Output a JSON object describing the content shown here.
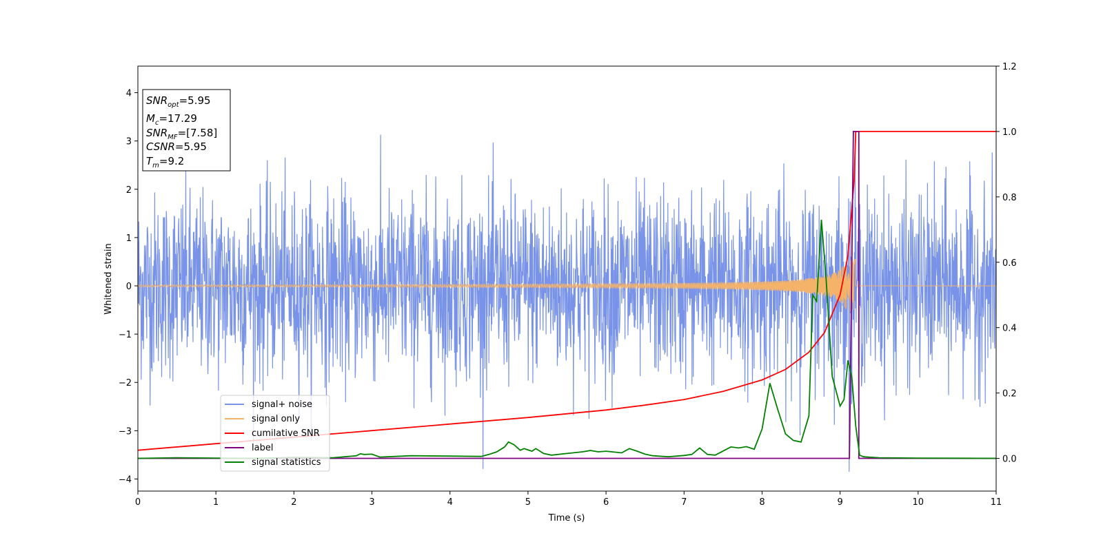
{
  "chart_data": {
    "type": "line",
    "xlabel": "Time (s)",
    "ylabel": "Whitened strain",
    "xlim": [
      0,
      11
    ],
    "ylim_left": [
      -4.25,
      4.55
    ],
    "ylim_right": [
      -0.1,
      1.2
    ],
    "x_ticks": [
      "0",
      "1",
      "2",
      "3",
      "4",
      "5",
      "6",
      "7",
      "8",
      "9",
      "10",
      "11"
    ],
    "y_left_ticks": [
      "−4",
      "−3",
      "−2",
      "−1",
      "0",
      "1",
      "2",
      "3",
      "4"
    ],
    "y_right_ticks": [
      "0.0",
      "0.2",
      "0.4",
      "0.6",
      "0.8",
      "1.0",
      "1.2"
    ],
    "grid": false,
    "legend_position": "lower-left",
    "annotation": {
      "snr_opt": {
        "base": "SNR",
        "sub": "opt",
        "value": "=5.95"
      },
      "mc": {
        "base": "M",
        "sub": "c",
        "value": "=17.29"
      },
      "snr_mf": {
        "base": "SNR",
        "sub": "MF",
        "value": "=[7.58]"
      },
      "csnr": {
        "base": "CSNR",
        "sub": "",
        "value": "=5.95"
      },
      "tm": {
        "base": "T",
        "sub": "m",
        "value": "=9.2"
      }
    },
    "series": [
      {
        "name": "signal+ noise",
        "color": "#7893e8",
        "axis": "left",
        "noise_sigma": 0.95,
        "range_approx": [
          -3.85,
          4.15
        ]
      },
      {
        "name": "signal only",
        "color": "#f5b36a",
        "axis": "left",
        "chirp_start_amp": 0.02,
        "chirp_end_amp": 0.55,
        "merger_time": 9.2
      },
      {
        "name": "cumilative SNR",
        "color": "#ff0000",
        "axis": "right",
        "x": [
          0,
          1,
          2,
          3,
          4,
          5,
          6,
          6.5,
          7,
          7.5,
          8,
          8.3,
          8.6,
          8.8,
          9.0,
          9.1,
          9.18,
          9.2,
          11
        ],
        "y": [
          0.025,
          0.045,
          0.065,
          0.085,
          0.105,
          0.125,
          0.148,
          0.163,
          0.18,
          0.205,
          0.24,
          0.272,
          0.325,
          0.385,
          0.5,
          0.62,
          0.85,
          1.0,
          1.0
        ]
      },
      {
        "name": "label",
        "color": "#800080",
        "axis": "right",
        "x": [
          0,
          9.12,
          9.17,
          9.24,
          9.24,
          11
        ],
        "y": [
          0,
          0,
          1,
          1,
          0,
          0
        ]
      },
      {
        "name": "signal statistics",
        "color": "#008000",
        "axis": "right",
        "x": [
          0,
          0.5,
          1,
          1.5,
          2,
          2.5,
          2.7,
          2.8,
          2.85,
          2.9,
          3.0,
          3.1,
          3.2,
          3.5,
          4.0,
          4.4,
          4.5,
          4.6,
          4.7,
          4.75,
          4.82,
          4.9,
          4.95,
          5.05,
          5.1,
          5.2,
          5.3,
          5.5,
          5.7,
          5.8,
          5.9,
          6.0,
          6.2,
          6.3,
          6.4,
          6.5,
          6.6,
          6.8,
          7.0,
          7.1,
          7.2,
          7.3,
          7.4,
          7.6,
          7.7,
          7.8,
          7.9,
          8.0,
          8.1,
          8.2,
          8.3,
          8.4,
          8.5,
          8.6,
          8.65,
          8.7,
          8.76,
          8.82,
          8.9,
          9.0,
          9.05,
          9.1,
          9.15,
          9.2,
          9.25,
          9.3,
          9.5,
          10,
          11
        ],
        "y": [
          0.0,
          0.002,
          0.001,
          0.0,
          0.003,
          0.002,
          0.006,
          0.008,
          0.014,
          0.012,
          0.013,
          0.004,
          0.005,
          0.008,
          0.007,
          0.006,
          0.012,
          0.02,
          0.035,
          0.05,
          0.042,
          0.025,
          0.03,
          0.022,
          0.03,
          0.015,
          0.01,
          0.015,
          0.02,
          0.024,
          0.02,
          0.022,
          0.017,
          0.03,
          0.022,
          0.013,
          0.008,
          0.005,
          0.009,
          0.012,
          0.032,
          0.012,
          0.01,
          0.035,
          0.032,
          0.036,
          0.028,
          0.09,
          0.23,
          0.15,
          0.075,
          0.055,
          0.05,
          0.13,
          0.5,
          0.48,
          0.73,
          0.55,
          0.25,
          0.16,
          0.18,
          0.3,
          0.25,
          0.1,
          0.01,
          0.005,
          0.002,
          0.001,
          0.0
        ]
      }
    ]
  }
}
